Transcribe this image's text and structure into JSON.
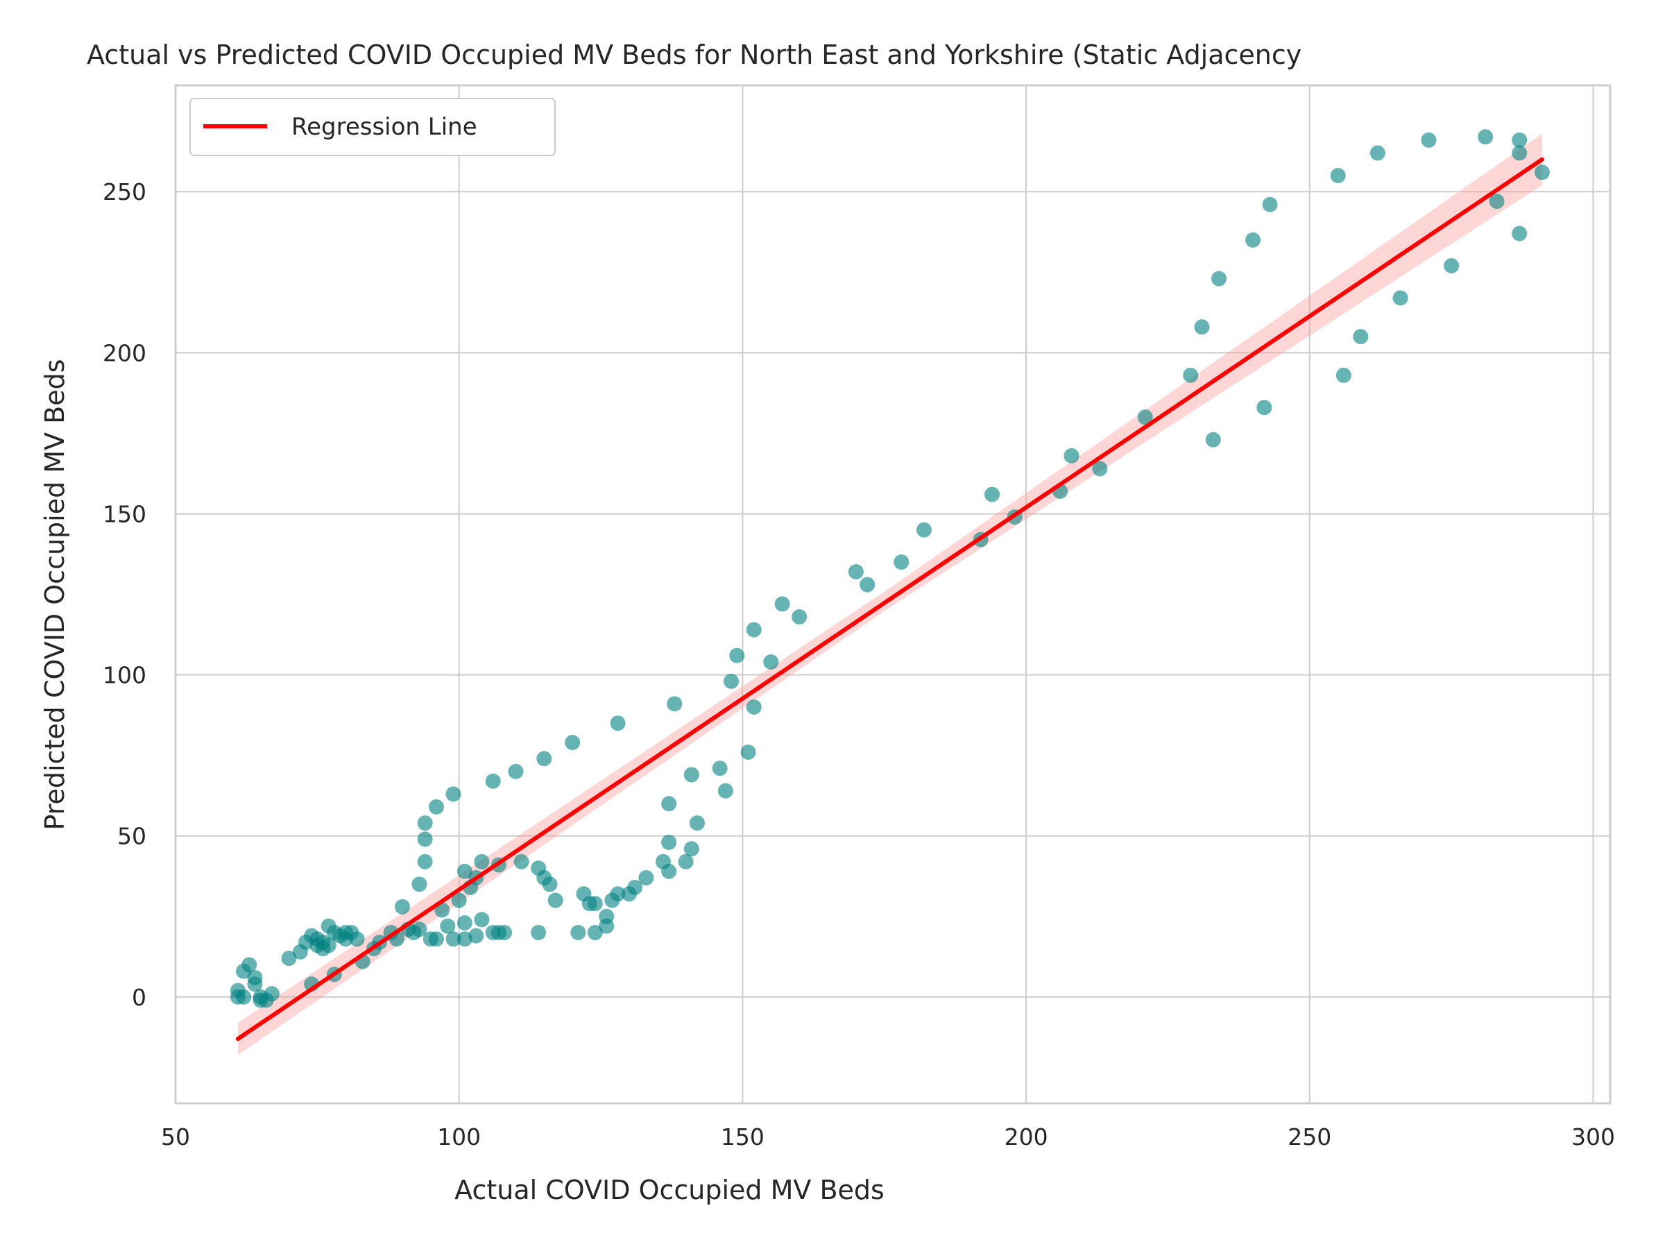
{
  "chart_data": {
    "type": "scatter",
    "title": "Actual vs Predicted COVID Occupied MV Beds for North East and Yorkshire (Static Adjacency",
    "xlabel": "Actual COVID Occupied MV Beds",
    "ylabel": "Predicted COVID Occupied MV Beds",
    "xlim": [
      50,
      303
    ],
    "ylim": [
      -33,
      283
    ],
    "x_ticks": [
      50,
      100,
      150,
      200,
      250,
      300
    ],
    "y_ticks": [
      0,
      50,
      100,
      150,
      200,
      250
    ],
    "grid": true,
    "legend": {
      "position": "top-left",
      "entries": [
        "Regression Line"
      ]
    },
    "colors": {
      "points": "#008080",
      "regression": "#ff0000",
      "confidence_band": "#ff9999",
      "grid": "#cccccc"
    },
    "regression_line": {
      "name": "Regression Line",
      "start": [
        61,
        -13
      ],
      "end": [
        291,
        260
      ]
    },
    "confidence_band": {
      "upper": [
        [
          61,
          -8
        ],
        [
          176,
          127
        ],
        [
          291,
          268
        ]
      ],
      "lower": [
        [
          61,
          -18
        ],
        [
          176,
          121
        ],
        [
          291,
          252
        ]
      ]
    },
    "points": [
      [
        61,
        2
      ],
      [
        61,
        0
      ],
      [
        62,
        8
      ],
      [
        62,
        0
      ],
      [
        63,
        10
      ],
      [
        64,
        6
      ],
      [
        64,
        4
      ],
      [
        65,
        0
      ],
      [
        65,
        -1
      ],
      [
        66,
        -1
      ],
      [
        67,
        1
      ],
      [
        70,
        12
      ],
      [
        72,
        14
      ],
      [
        73,
        17
      ],
      [
        74,
        19
      ],
      [
        74,
        4
      ],
      [
        75,
        16
      ],
      [
        75,
        18
      ],
      [
        76,
        15
      ],
      [
        76,
        17
      ],
      [
        77,
        16
      ],
      [
        77,
        22
      ],
      [
        78,
        20
      ],
      [
        78,
        7
      ],
      [
        79,
        19
      ],
      [
        80,
        18
      ],
      [
        80,
        20
      ],
      [
        81,
        20
      ],
      [
        82,
        18
      ],
      [
        83,
        11
      ],
      [
        85,
        15
      ],
      [
        86,
        17
      ],
      [
        88,
        20
      ],
      [
        89,
        18
      ],
      [
        90,
        28
      ],
      [
        91,
        21
      ],
      [
        92,
        20
      ],
      [
        93,
        35
      ],
      [
        93,
        21
      ],
      [
        94,
        42
      ],
      [
        94,
        49
      ],
      [
        94,
        54
      ],
      [
        95,
        18
      ],
      [
        96,
        18
      ],
      [
        96,
        59
      ],
      [
        97,
        27
      ],
      [
        98,
        22
      ],
      [
        99,
        18
      ],
      [
        99,
        63
      ],
      [
        100,
        30
      ],
      [
        101,
        18
      ],
      [
        101,
        23
      ],
      [
        101,
        39
      ],
      [
        102,
        34
      ],
      [
        103,
        37
      ],
      [
        103,
        19
      ],
      [
        104,
        42
      ],
      [
        104,
        24
      ],
      [
        106,
        20
      ],
      [
        106,
        67
      ],
      [
        107,
        41
      ],
      [
        107,
        20
      ],
      [
        108,
        20
      ],
      [
        110,
        70
      ],
      [
        111,
        42
      ],
      [
        114,
        40
      ],
      [
        114,
        20
      ],
      [
        115,
        37
      ],
      [
        115,
        74
      ],
      [
        116,
        35
      ],
      [
        117,
        30
      ],
      [
        120,
        79
      ],
      [
        121,
        20
      ],
      [
        122,
        32
      ],
      [
        123,
        29
      ],
      [
        124,
        29
      ],
      [
        124,
        20
      ],
      [
        126,
        25
      ],
      [
        126,
        22
      ],
      [
        127,
        30
      ],
      [
        128,
        85
      ],
      [
        128,
        32
      ],
      [
        130,
        32
      ],
      [
        131,
        34
      ],
      [
        133,
        37
      ],
      [
        136,
        42
      ],
      [
        137,
        48
      ],
      [
        137,
        39
      ],
      [
        137,
        60
      ],
      [
        138,
        91
      ],
      [
        140,
        42
      ],
      [
        141,
        46
      ],
      [
        141,
        69
      ],
      [
        142,
        54
      ],
      [
        146,
        71
      ],
      [
        147,
        64
      ],
      [
        148,
        98
      ],
      [
        149,
        106
      ],
      [
        151,
        76
      ],
      [
        152,
        90
      ],
      [
        152,
        114
      ],
      [
        155,
        104
      ],
      [
        157,
        122
      ],
      [
        160,
        118
      ],
      [
        170,
        132
      ],
      [
        172,
        128
      ],
      [
        178,
        135
      ],
      [
        182,
        145
      ],
      [
        192,
        142
      ],
      [
        194,
        156
      ],
      [
        198,
        149
      ],
      [
        206,
        157
      ],
      [
        208,
        168
      ],
      [
        213,
        164
      ],
      [
        221,
        180
      ],
      [
        229,
        193
      ],
      [
        231,
        208
      ],
      [
        233,
        173
      ],
      [
        234,
        223
      ],
      [
        240,
        235
      ],
      [
        242,
        183
      ],
      [
        243,
        246
      ],
      [
        255,
        255
      ],
      [
        256,
        193
      ],
      [
        259,
        205
      ],
      [
        262,
        262
      ],
      [
        266,
        217
      ],
      [
        271,
        266
      ],
      [
        275,
        227
      ],
      [
        281,
        267
      ],
      [
        283,
        247
      ],
      [
        287,
        262
      ],
      [
        287,
        266
      ],
      [
        287,
        237
      ],
      [
        291,
        256
      ]
    ]
  }
}
